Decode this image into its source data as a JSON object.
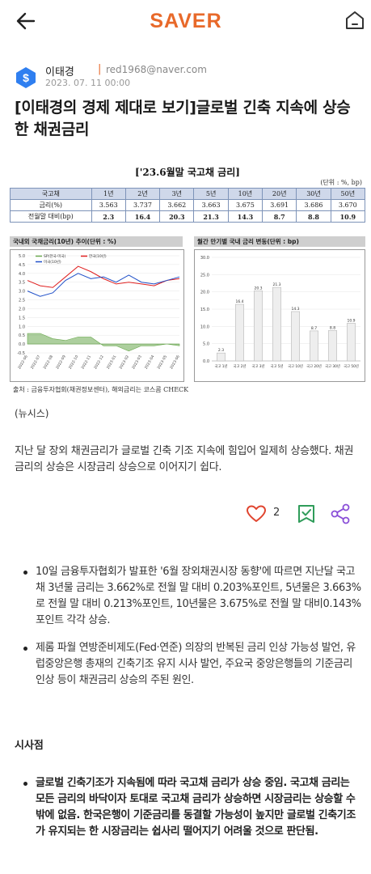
{
  "header": {
    "logo_text": "SAVER",
    "brand_color": "#e8692a"
  },
  "author": {
    "name": "이태경",
    "separator": "|",
    "email": "red1968@naver.com",
    "date": "2023. 07. 11 00:00"
  },
  "article": {
    "title": "[이태경의 경제 제대로 보기]글로벌 긴축 지속에 상승한 채권금리",
    "source_tag": "(뉴시스)",
    "lead": "지난 달 장외 채권금리가 글로벌 긴축 기조 지속에 힘입어 일제히 상승했다. 채권금리의 상승은 시장금리 상승으로 이어지기 쉽다.",
    "bullets": [
      "10일 금융투자협회가 발표한 '6월 장외채권시장 동향'에 따르면 지난달 국고채 3년물 금리는 3.662%로 전월 말 대비 0.203%포인트, 5년물은 3.663%로 전월 말 대비 0.213%포인트, 10년물은 3.675%로 전월 말 대비0.143%포인트 각각 상승.",
      "제롬 파월 연방준비제도(Fed·연준) 의장의 반복된 금리 인상 가능성 발언, 유럽중앙은행 총재의 긴축기조 유지 시사 발언, 주요국 중앙은행들의 기준금리 인상 등이 채권금리 상승의 주된 원인."
    ],
    "section_heading": "시사점",
    "implications": [
      "글로벌 긴축기조가 지속됨에 따라 국고채 금리가 상승 중임. 국고채 금리는 모든 금리의 바닥이자 토대로 국고채 금리가 상승하면 시장금리는 상승할 수 밖에 없음. 한국은행이 기준금리를 동결할 가능성이 높지만 글로벌 긴축기조가 유지되는 한 시장금리는 쉽사리 떨어지기 어려울 것으로 판단됨."
    ]
  },
  "actions": {
    "like_count": "2",
    "like_color": "#e0452f",
    "bookmark_color": "#2f9c5a",
    "share_color": "#8a4fd8"
  },
  "figure": {
    "title": "['23.6월말 국고채 금리]",
    "unit": "(단위 : %, bp)",
    "table": {
      "headers": [
        "국고채",
        "1년",
        "2년",
        "3년",
        "5년",
        "10년",
        "20년",
        "30년",
        "50년"
      ],
      "rows": [
        {
          "label": "금리(%)",
          "values": [
            "3.563",
            "3.737",
            "3.662",
            "3.663",
            "3.675",
            "3.691",
            "3.686",
            "3.670"
          ]
        },
        {
          "label": "전월말 대비(bp)",
          "values": [
            "2.3",
            "16.4",
            "20.3",
            "21.3",
            "14.3",
            "8.7",
            "8.8",
            "10.9"
          ]
        }
      ]
    },
    "left_panel_title": "국내외 국채금리(10년) 추이(단위 : %)",
    "right_panel_title": "월간 만기별 국내 금리 변동(단위 : bp)",
    "source": "출처 : 금융투자협회(채권정보센터), 해외금리는 코스콤 CHECK"
  },
  "chart_data": [
    {
      "type": "line",
      "title": "국내외 국채금리(10년) 추이(단위 : %)",
      "x_ticks": [
        "2022-06",
        "2022-07",
        "2022-08",
        "2022-09",
        "2022-10",
        "2022-11",
        "2022-12",
        "2023-01",
        "2023-02",
        "2023-03",
        "2023-04",
        "2023-05",
        "2023-06"
      ],
      "ylim": [
        -0.5,
        5.0
      ],
      "yticks": [
        "5.0",
        "4.5",
        "4.0",
        "3.5",
        "3.0",
        "2.5",
        "2.0",
        "1.5",
        "1.0",
        "0.5",
        "0.0",
        "-0.5"
      ],
      "series": [
        {
          "name": "한국(10년)",
          "color": "#e02020",
          "values": [
            3.6,
            3.3,
            3.2,
            3.8,
            4.4,
            4.1,
            3.7,
            3.4,
            3.5,
            3.4,
            3.3,
            3.6,
            3.7
          ]
        },
        {
          "name": "미국(10년)",
          "color": "#2050c8",
          "values": [
            3.0,
            2.7,
            2.9,
            3.6,
            4.0,
            3.7,
            3.8,
            3.5,
            3.9,
            3.5,
            3.4,
            3.6,
            3.8
          ]
        },
        {
          "name": "SP(한국-미국)",
          "color": "#6aa84f",
          "values": [
            0.6,
            0.6,
            0.3,
            0.2,
            0.4,
            0.4,
            -0.1,
            -0.1,
            -0.4,
            -0.1,
            -0.1,
            0.0,
            -0.1
          ]
        }
      ]
    },
    {
      "type": "bar",
      "title": "월간 만기별 국내 금리 변동(단위 : bp)",
      "categories": [
        "국고 1년",
        "국고 2년",
        "국고 3년",
        "국고 5년",
        "국고 10년",
        "국고 20년",
        "국고 30년",
        "국고 50년"
      ],
      "values": [
        2.3,
        16.4,
        20.3,
        21.3,
        14.3,
        8.7,
        8.8,
        10.9
      ],
      "ylim": [
        0,
        30
      ],
      "yticks": [
        "30.0",
        "25.0",
        "20.0",
        "15.0",
        "10.0",
        "5.0",
        "0.0"
      ]
    }
  ]
}
